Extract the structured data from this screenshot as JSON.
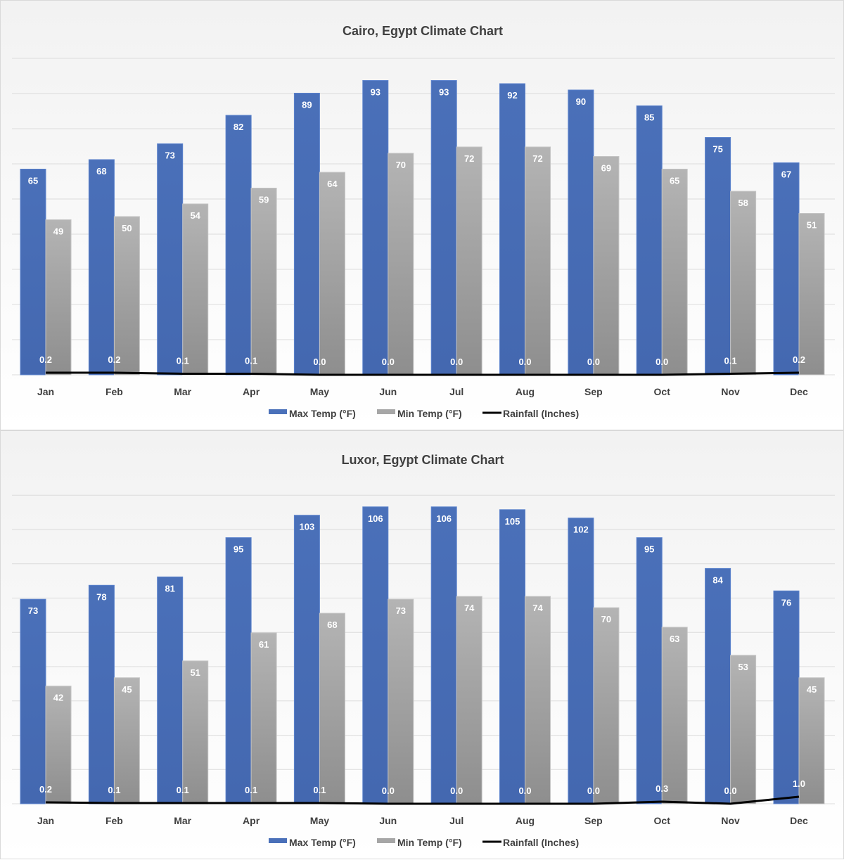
{
  "chart_data": [
    {
      "type": "bar",
      "title": "Cairo, Egypt Climate Chart",
      "categories": [
        "Jan",
        "Feb",
        "Mar",
        "Apr",
        "May",
        "Jun",
        "Jul",
        "Aug",
        "Sep",
        "Oct",
        "Nov",
        "Dec"
      ],
      "series": [
        {
          "name": "Max Temp (°F)",
          "type": "bar",
          "color": "#4a70b9",
          "values": [
            65,
            68,
            73,
            82,
            89,
            93,
            93,
            92,
            90,
            85,
            75,
            67
          ]
        },
        {
          "name": "Min Temp (°F)",
          "type": "bar",
          "color": "#a6a6a6",
          "values": [
            49,
            50,
            54,
            59,
            64,
            70,
            72,
            72,
            69,
            65,
            58,
            51
          ]
        },
        {
          "name": "Rainfall (Inches)",
          "type": "line",
          "color": "#000000",
          "values": [
            "0.2",
            "0.2",
            "0.1",
            "0.1",
            "0.0",
            "0.0",
            "0.0",
            "0.0",
            "0.0",
            "0.0",
            "0.1",
            "0.2"
          ]
        }
      ],
      "ylim": [
        0,
        100
      ],
      "grid": true,
      "legend": "bottom"
    },
    {
      "type": "bar",
      "title": "Luxor, Egypt Climate Chart",
      "categories": [
        "Jan",
        "Feb",
        "Mar",
        "Apr",
        "May",
        "Jun",
        "Jul",
        "Aug",
        "Sep",
        "Oct",
        "Nov",
        "Dec"
      ],
      "series": [
        {
          "name": "Max Temp (°F)",
          "type": "bar",
          "color": "#4a70b9",
          "values": [
            73,
            78,
            81,
            95,
            103,
            106,
            106,
            105,
            102,
            95,
            84,
            76
          ]
        },
        {
          "name": "Min Temp (°F)",
          "type": "bar",
          "color": "#a6a6a6",
          "values": [
            42,
            45,
            51,
            61,
            68,
            73,
            74,
            74,
            70,
            63,
            53,
            45
          ]
        },
        {
          "name": "Rainfall (Inches)",
          "type": "line",
          "color": "#000000",
          "values": [
            "0.2",
            "0.1",
            "0.1",
            "0.1",
            "0.1",
            "0.0",
            "0.0",
            "0.0",
            "0.0",
            "0.3",
            "0.0",
            "1.0"
          ]
        }
      ],
      "ylim": [
        0,
        120
      ],
      "grid": true,
      "legend": "bottom"
    }
  ]
}
